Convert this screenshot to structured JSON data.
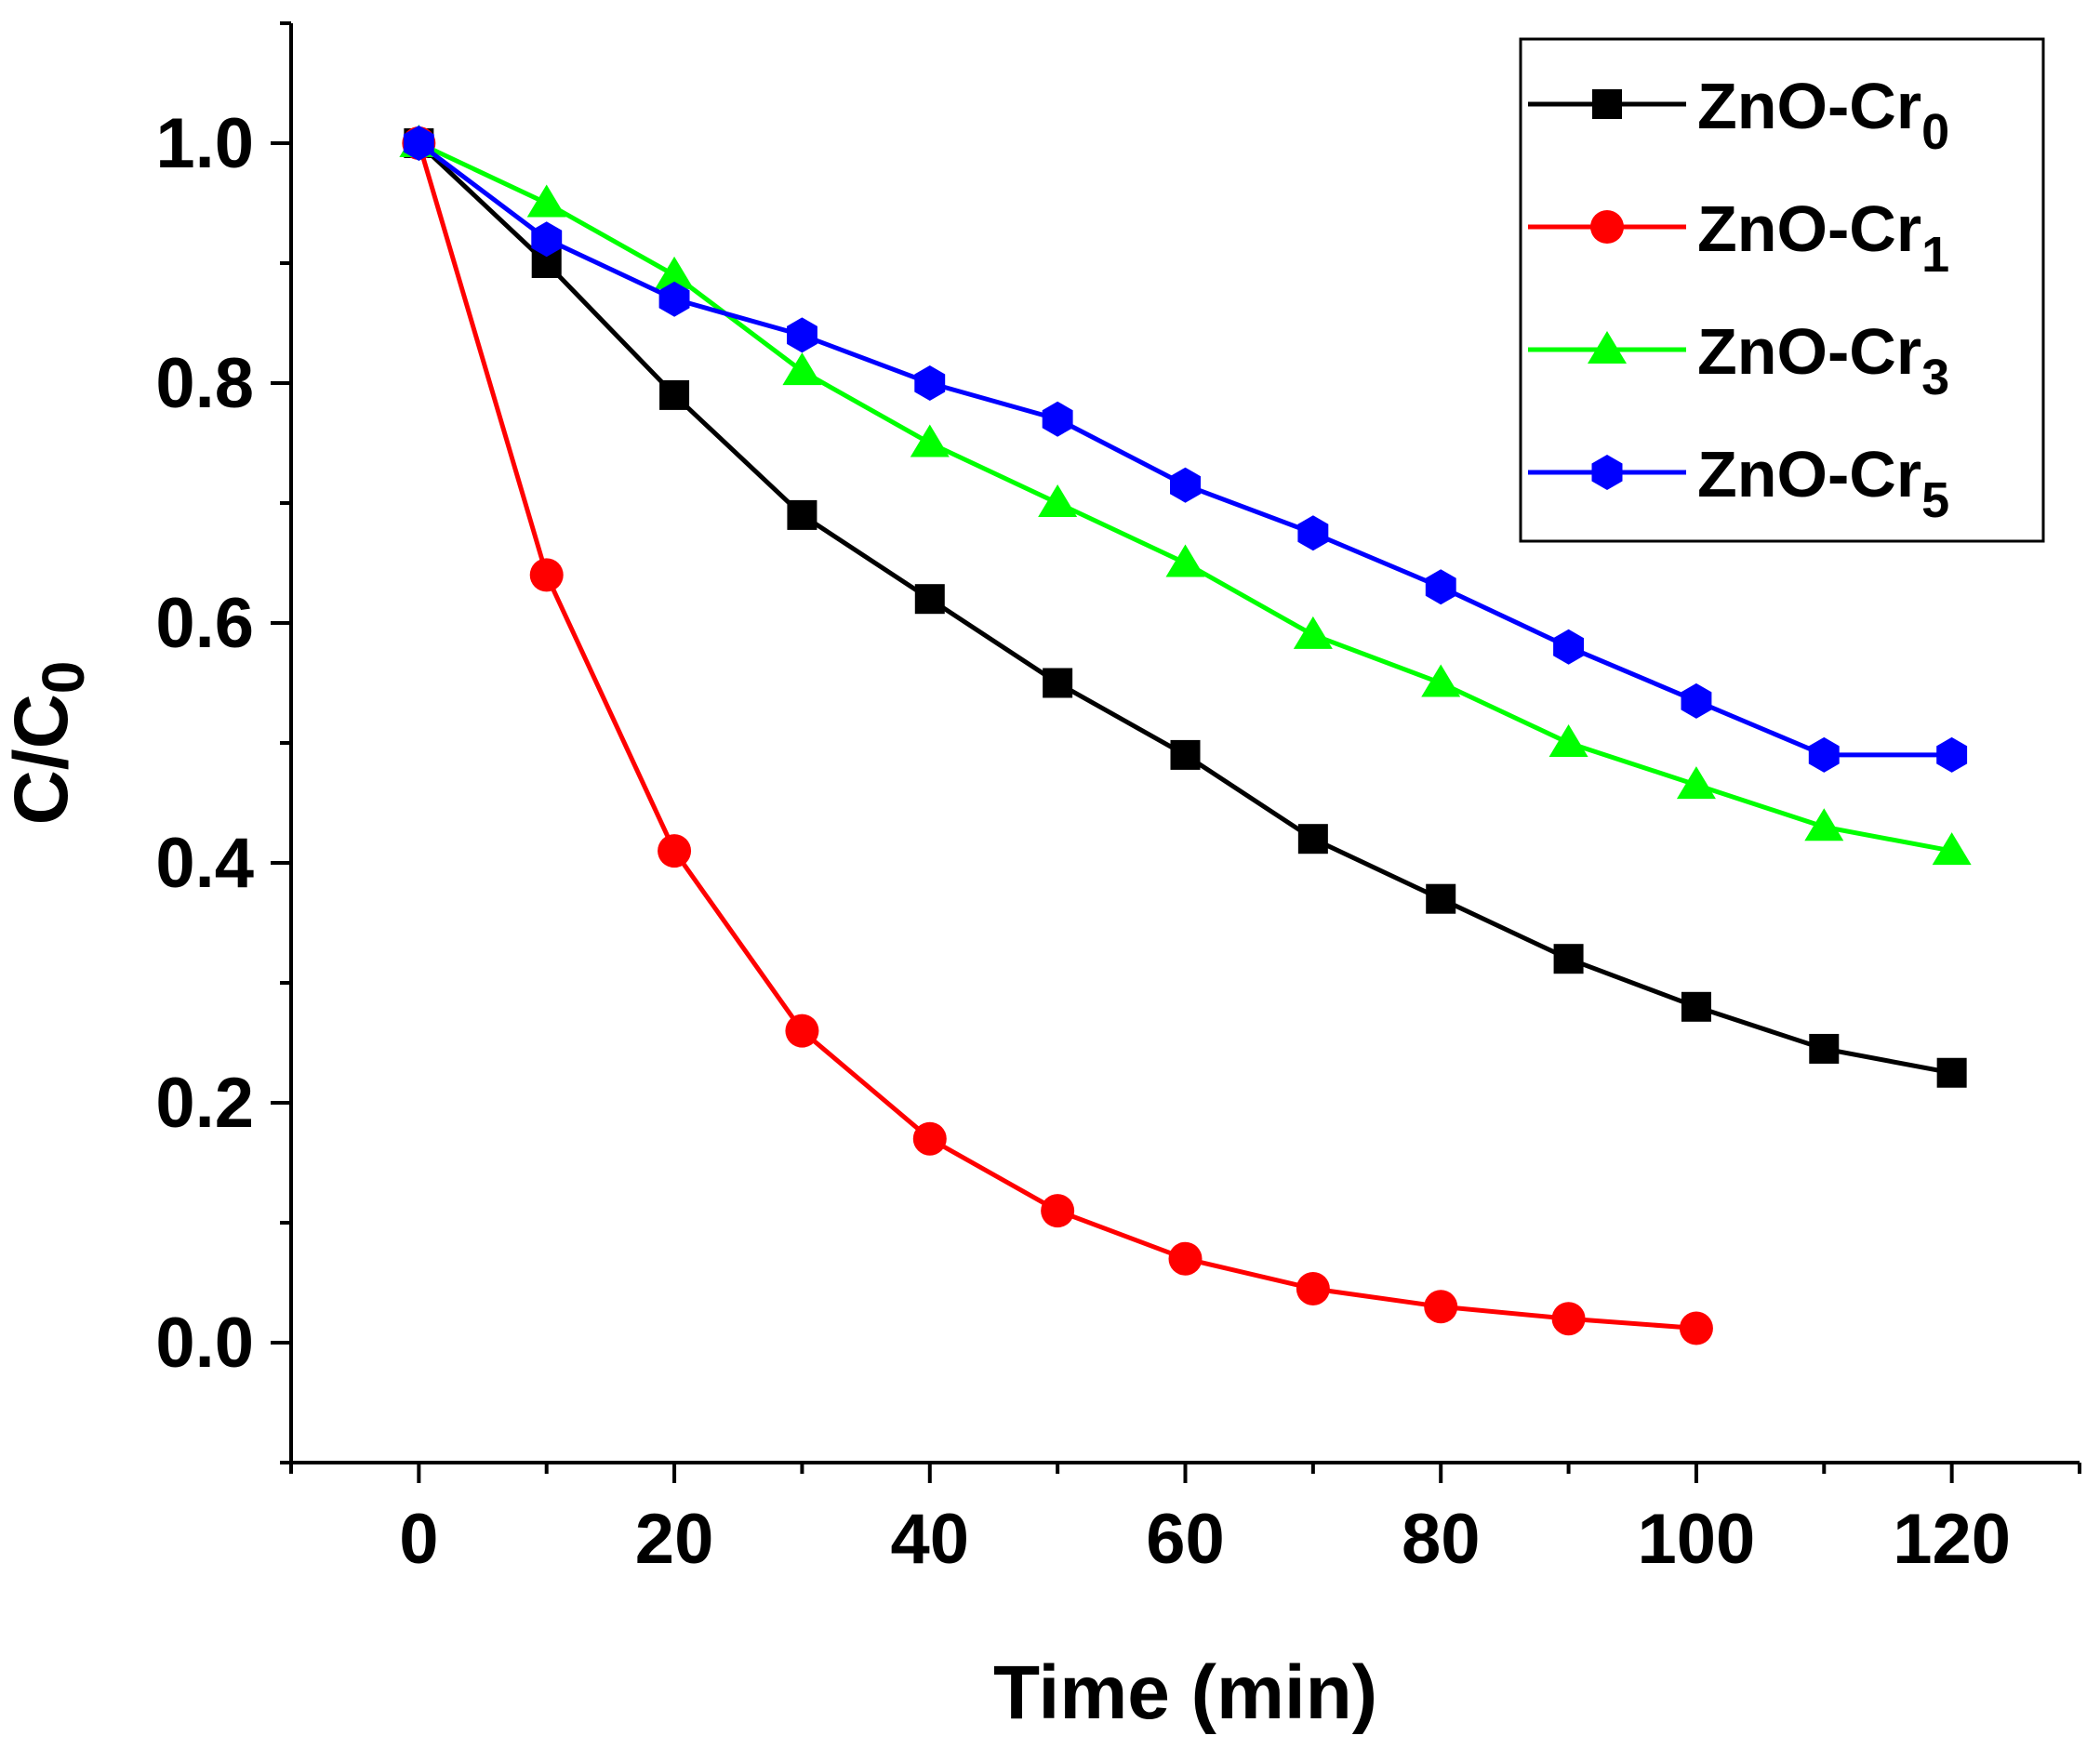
{
  "chart_data": {
    "type": "line",
    "title": "",
    "xlabel": "Time (min)",
    "ylabel": {
      "main": "C/C",
      "sub": "0"
    },
    "xlim": [
      -10,
      130
    ],
    "ylim": [
      -0.1,
      1.1
    ],
    "xticks": [
      0,
      20,
      40,
      60,
      80,
      100,
      120
    ],
    "xtick_labels": [
      "0",
      "20",
      "40",
      "60",
      "80",
      "100",
      "120"
    ],
    "yticks": [
      0.0,
      0.2,
      0.4,
      0.6,
      0.8,
      1.0
    ],
    "ytick_labels": [
      "0.0",
      "0.2",
      "0.4",
      "0.6",
      "0.8",
      "1.0"
    ],
    "grid": false,
    "legend_position": "top-right",
    "series": [
      {
        "name": "ZnO-Cr0",
        "label": "ZnO-Cr",
        "sub": "0",
        "color": "#000000",
        "marker": "square",
        "x": [
          0,
          10,
          20,
          30,
          40,
          50,
          60,
          70,
          80,
          90,
          100,
          110,
          120
        ],
        "y": [
          1.0,
          0.9,
          0.79,
          0.69,
          0.62,
          0.55,
          0.49,
          0.42,
          0.37,
          0.32,
          0.28,
          0.245,
          0.225
        ]
      },
      {
        "name": "ZnO-Cr1",
        "label": "ZnO-Cr",
        "sub": "1",
        "color": "#ff0000",
        "marker": "circle",
        "x": [
          0,
          10,
          20,
          30,
          40,
          50,
          60,
          70,
          80,
          90,
          100
        ],
        "y": [
          1.0,
          0.64,
          0.41,
          0.26,
          0.17,
          0.11,
          0.07,
          0.045,
          0.03,
          0.02,
          0.012
        ]
      },
      {
        "name": "ZnO-Cr3",
        "label": "ZnO-Cr",
        "sub": "3",
        "color": "#00ff00",
        "marker": "triangle",
        "x": [
          0,
          10,
          20,
          30,
          40,
          50,
          60,
          70,
          80,
          90,
          100,
          110,
          120
        ],
        "y": [
          1.0,
          0.95,
          0.89,
          0.81,
          0.75,
          0.7,
          0.65,
          0.59,
          0.55,
          0.5,
          0.465,
          0.43,
          0.41
        ]
      },
      {
        "name": "ZnO-Cr5",
        "label": "ZnO-Cr",
        "sub": "5",
        "color": "#0000ff",
        "marker": "hexagon",
        "x": [
          0,
          10,
          20,
          30,
          40,
          50,
          60,
          70,
          80,
          90,
          100,
          110,
          120
        ],
        "y": [
          1.0,
          0.92,
          0.87,
          0.84,
          0.8,
          0.77,
          0.715,
          0.675,
          0.63,
          0.58,
          0.535,
          0.49,
          0.49
        ]
      }
    ]
  }
}
